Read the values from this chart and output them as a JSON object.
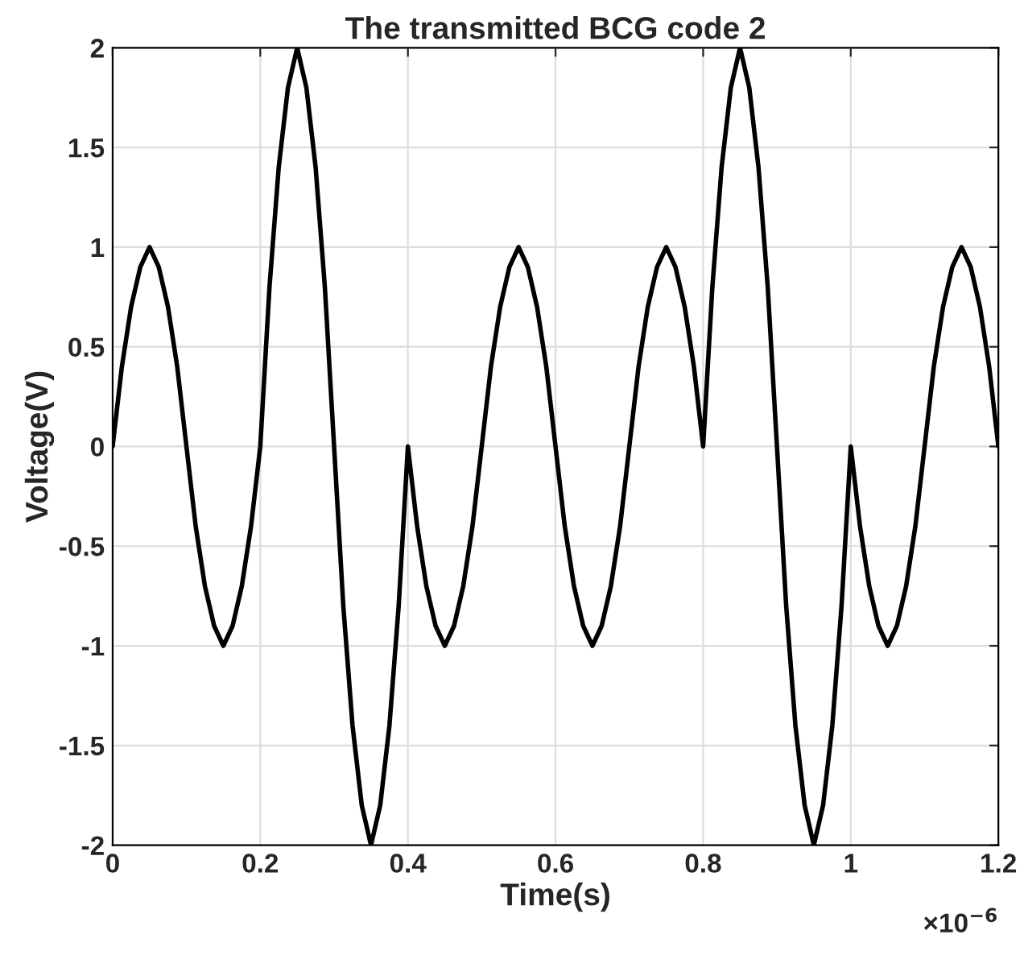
{
  "chart_data": {
    "type": "line",
    "title": "The transmitted BCG code 2",
    "xlabel": "Time(s)",
    "ylabel": "Voltage(V)",
    "annotations": [
      "×10$^{−6}$"
    ],
    "xlim": [
      0,
      1.2
    ],
    "xticks": [
      0,
      0.2,
      0.4,
      0.6,
      0.8,
      1,
      1.2
    ],
    "ylim": [
      -2,
      2
    ],
    "yticks": [
      -2,
      -1.5,
      -1,
      -0.5,
      0,
      0.5,
      1,
      1.5,
      2
    ],
    "grid": true,
    "legend": false,
    "marker": "none",
    "line_style": "solid",
    "series": [
      {
        "color": "#000000",
        "x": [
          0,
          0.0125,
          0.025,
          0.0375,
          0.05,
          0.0625,
          0.075,
          0.0875,
          0.1,
          0.1125,
          0.125,
          0.1375,
          0.15,
          0.1625,
          0.175,
          0.1875,
          0.2,
          0.2125,
          0.225,
          0.2375,
          0.25,
          0.2625,
          0.275,
          0.2875,
          0.3,
          0.3125,
          0.325,
          0.3375,
          0.35,
          0.3625,
          0.375,
          0.3875,
          0.4,
          0.4125,
          0.425,
          0.4375,
          0.45,
          0.4625,
          0.475,
          0.4875,
          0.5,
          0.5125,
          0.525,
          0.5375,
          0.55,
          0.5625,
          0.575,
          0.5875,
          0.6,
          0.6125,
          0.625,
          0.6375,
          0.65,
          0.6625,
          0.675,
          0.6875,
          0.7,
          0.7125,
          0.725,
          0.7375,
          0.75,
          0.7625,
          0.775,
          0.7875,
          0.8,
          0.8125,
          0.825,
          0.8375,
          0.85,
          0.8625,
          0.875,
          0.8875,
          0.9,
          0.9125,
          0.925,
          0.9375,
          0.95,
          0.9625,
          0.975,
          0.9875,
          1,
          1.0125,
          1.025,
          1.0375,
          1.05,
          1.0625,
          1.075,
          1.0875,
          1.1,
          1.1125,
          1.125,
          1.1375,
          1.15,
          1.1625,
          1.175,
          1.1875,
          1.2
        ],
        "values": [
          0,
          0.4,
          0.7,
          0.9,
          1,
          0.9,
          0.7,
          0.4,
          0,
          -0.4,
          -0.7,
          -0.9,
          -1,
          -0.9,
          -0.7,
          -0.4,
          0,
          0.8,
          1.4,
          1.8,
          2,
          1.8,
          1.4,
          0.8,
          0,
          -0.8,
          -1.4,
          -1.8,
          -2,
          -1.8,
          -1.4,
          -0.8,
          0,
          -0.4,
          -0.7,
          -0.9,
          -1,
          -0.9,
          -0.7,
          -0.4,
          0,
          0.4,
          0.7,
          0.9,
          1,
          0.9,
          0.7,
          0.4,
          0,
          -0.4,
          -0.7,
          -0.9,
          -1,
          -0.9,
          -0.7,
          -0.4,
          0,
          0.4,
          0.7,
          0.9,
          1,
          0.9,
          0.7,
          0.4,
          0,
          0.8,
          1.4,
          1.8,
          2,
          1.8,
          1.4,
          0.8,
          0,
          -0.8,
          -1.4,
          -1.8,
          -2,
          -1.8,
          -1.4,
          -0.8,
          0,
          -0.4,
          -0.7,
          -0.9,
          -1,
          -0.9,
          -0.7,
          -0.4,
          0,
          0.4,
          0.7,
          0.9,
          1,
          0.9,
          0.7,
          0.4,
          0
        ]
      }
    ]
  }
}
